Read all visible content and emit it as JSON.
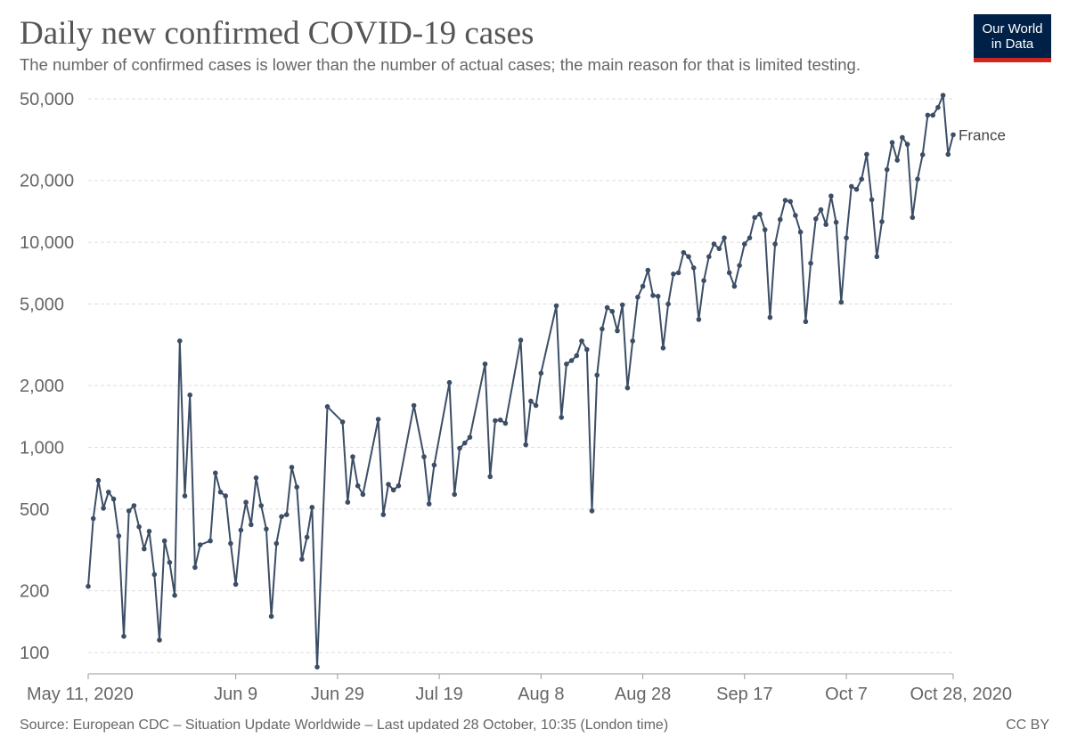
{
  "header": {
    "title": "Daily new confirmed COVID-19 cases",
    "subtitle": "The number of confirmed cases is lower than the number of actual cases; the main reason for that is limited testing."
  },
  "logo": {
    "line1": "Our World",
    "line2": "in Data",
    "bg_color": "#002147",
    "accent_color": "#ce261e"
  },
  "footer": {
    "source": "Source: European CDC – Situation Update Worldwide – Last updated 28 October, 10:35 (London time)",
    "license": "CC BY"
  },
  "chart_data": {
    "type": "line",
    "scale": "log",
    "title": "Daily new confirmed COVID-19 cases",
    "xlabel": "",
    "ylabel": "",
    "ylim": [
      90,
      55000
    ],
    "x_range_days": [
      0,
      170
    ],
    "y_ticks": [
      {
        "value": 100,
        "label": "100"
      },
      {
        "value": 200,
        "label": "200"
      },
      {
        "value": 500,
        "label": "500"
      },
      {
        "value": 1000,
        "label": "1,000"
      },
      {
        "value": 2000,
        "label": "2,000"
      },
      {
        "value": 5000,
        "label": "5,000"
      },
      {
        "value": 10000,
        "label": "10,000"
      },
      {
        "value": 20000,
        "label": "20,000"
      },
      {
        "value": 50000,
        "label": "50,000"
      }
    ],
    "x_ticks": [
      {
        "day": 0,
        "label": "May 11, 2020"
      },
      {
        "day": 29,
        "label": "Jun 9"
      },
      {
        "day": 49,
        "label": "Jun 29"
      },
      {
        "day": 69,
        "label": "Jul 19"
      },
      {
        "day": 89,
        "label": "Aug 8"
      },
      {
        "day": 109,
        "label": "Aug 28"
      },
      {
        "day": 129,
        "label": "Sep 17"
      },
      {
        "day": 149,
        "label": "Oct 7"
      },
      {
        "day": 170,
        "label": "Oct 28, 2020"
      }
    ],
    "series": [
      {
        "name": "France",
        "color": "#3c4e66",
        "values": [
          [
            0,
            210
          ],
          [
            1,
            450
          ],
          [
            2,
            690
          ],
          [
            3,
            505
          ],
          [
            4,
            605
          ],
          [
            5,
            560
          ],
          [
            6,
            370
          ],
          [
            7,
            120
          ],
          [
            8,
            490
          ],
          [
            9,
            520
          ],
          [
            10,
            410
          ],
          [
            11,
            320
          ],
          [
            12,
            390
          ],
          [
            13,
            240
          ],
          [
            14,
            115
          ],
          [
            15,
            350
          ],
          [
            16,
            275
          ],
          [
            17,
            190
          ],
          [
            18,
            3300
          ],
          [
            19,
            580
          ],
          [
            20,
            1800
          ],
          [
            21,
            260
          ],
          [
            22,
            335
          ],
          [
            24,
            350
          ],
          [
            25,
            750
          ],
          [
            26,
            605
          ],
          [
            27,
            580
          ],
          [
            28,
            340
          ],
          [
            29,
            215
          ],
          [
            30,
            395
          ],
          [
            31,
            540
          ],
          [
            32,
            420
          ],
          [
            33,
            710
          ],
          [
            34,
            520
          ],
          [
            35,
            400
          ],
          [
            36,
            150
          ],
          [
            37,
            340
          ],
          [
            38,
            460
          ],
          [
            39,
            470
          ],
          [
            40,
            800
          ],
          [
            41,
            640
          ],
          [
            42,
            285
          ],
          [
            43,
            365
          ],
          [
            44,
            510
          ],
          [
            45,
            85
          ],
          [
            47,
            1580
          ],
          [
            50,
            1330
          ],
          [
            51,
            540
          ],
          [
            52,
            900
          ],
          [
            53,
            650
          ],
          [
            54,
            590
          ],
          [
            57,
            1370
          ],
          [
            58,
            470
          ],
          [
            59,
            660
          ],
          [
            60,
            620
          ],
          [
            61,
            650
          ],
          [
            64,
            1600
          ],
          [
            66,
            900
          ],
          [
            67,
            530
          ],
          [
            68,
            820
          ],
          [
            71,
            2070
          ],
          [
            72,
            590
          ],
          [
            73,
            990
          ],
          [
            74,
            1050
          ],
          [
            75,
            1120
          ],
          [
            78,
            2550
          ],
          [
            79,
            720
          ],
          [
            80,
            1350
          ],
          [
            81,
            1360
          ],
          [
            82,
            1310
          ],
          [
            85,
            3330
          ],
          [
            86,
            1030
          ],
          [
            87,
            1680
          ],
          [
            88,
            1600
          ],
          [
            89,
            2300
          ],
          [
            92,
            4900
          ],
          [
            93,
            1400
          ],
          [
            94,
            2550
          ],
          [
            95,
            2650
          ],
          [
            96,
            2800
          ],
          [
            97,
            3300
          ],
          [
            98,
            3000
          ],
          [
            99,
            490
          ],
          [
            100,
            2250
          ],
          [
            101,
            3780
          ],
          [
            102,
            4800
          ],
          [
            103,
            4600
          ],
          [
            104,
            3700
          ],
          [
            105,
            4950
          ],
          [
            106,
            1950
          ],
          [
            107,
            3300
          ],
          [
            108,
            5400
          ],
          [
            109,
            6100
          ],
          [
            110,
            7300
          ],
          [
            111,
            5500
          ],
          [
            112,
            5450
          ],
          [
            113,
            3050
          ],
          [
            114,
            5000
          ],
          [
            115,
            7000
          ],
          [
            116,
            7100
          ],
          [
            117,
            8900
          ],
          [
            118,
            8500
          ],
          [
            119,
            7500
          ],
          [
            120,
            4200
          ],
          [
            121,
            6500
          ],
          [
            122,
            8500
          ],
          [
            123,
            9800
          ],
          [
            124,
            9300
          ],
          [
            125,
            10500
          ],
          [
            126,
            7100
          ],
          [
            127,
            6100
          ],
          [
            128,
            7700
          ],
          [
            129,
            9800
          ],
          [
            130,
            10500
          ],
          [
            131,
            13200
          ],
          [
            132,
            13700
          ],
          [
            133,
            11500
          ],
          [
            134,
            4300
          ],
          [
            135,
            9800
          ],
          [
            136,
            12900
          ],
          [
            137,
            16000
          ],
          [
            138,
            15800
          ],
          [
            139,
            13500
          ],
          [
            140,
            11200
          ],
          [
            141,
            4100
          ],
          [
            142,
            7900
          ],
          [
            143,
            13000
          ],
          [
            144,
            14400
          ],
          [
            145,
            12200
          ],
          [
            146,
            16800
          ],
          [
            147,
            12500
          ],
          [
            148,
            5100
          ],
          [
            149,
            10500
          ],
          [
            150,
            18700
          ],
          [
            151,
            18100
          ],
          [
            152,
            20300
          ],
          [
            153,
            26800
          ],
          [
            154,
            16100
          ],
          [
            155,
            8500
          ],
          [
            156,
            12600
          ],
          [
            157,
            22600
          ],
          [
            158,
            30600
          ],
          [
            159,
            25100
          ],
          [
            160,
            32400
          ],
          [
            161,
            30000
          ],
          [
            162,
            13200
          ],
          [
            163,
            20300
          ],
          [
            164,
            26700
          ],
          [
            165,
            41600
          ],
          [
            166,
            41600
          ],
          [
            167,
            45400
          ],
          [
            168,
            52000
          ],
          [
            169,
            26800
          ],
          [
            170,
            33400
          ]
        ]
      }
    ]
  }
}
